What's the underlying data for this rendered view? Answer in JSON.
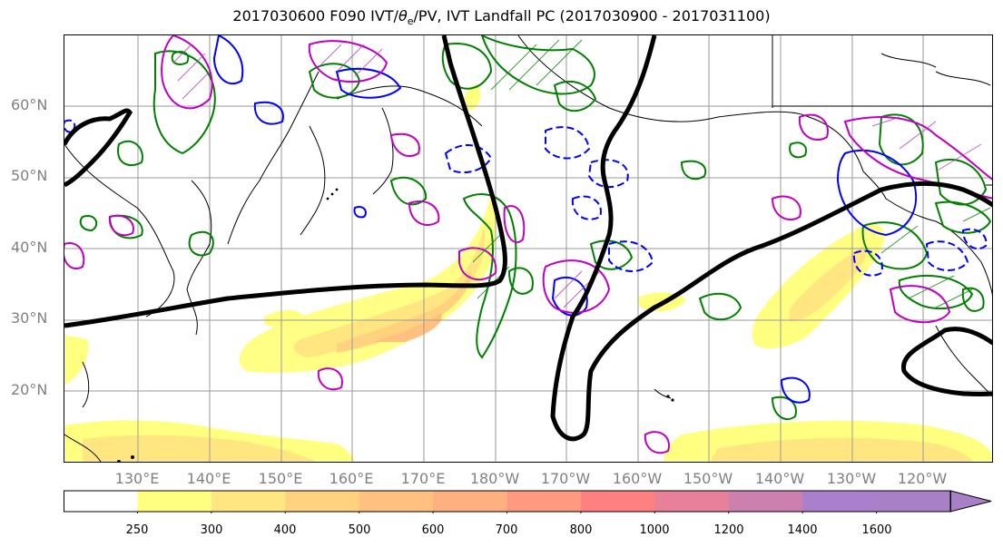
{
  "title_prefix": "2017030600 F090 IVT/",
  "title_theta": "θ",
  "title_sub": "e",
  "title_suffix": "/PV, IVT Landfall PC (2017030900 - 2017031100)",
  "lat_labels": [
    "60°N",
    "50°N",
    "40°N",
    "30°N",
    "20°N"
  ],
  "lon_labels": [
    "130°E",
    "140°E",
    "150°E",
    "160°E",
    "170°E",
    "180°W",
    "170°W",
    "160°W",
    "150°W",
    "140°W",
    "130°W",
    "120°W"
  ],
  "colorbar": {
    "ticks": [
      "250",
      "300",
      "400",
      "500",
      "600",
      "700",
      "800",
      "1000",
      "1200",
      "1400",
      "1600"
    ],
    "colors": [
      "#ffffff",
      "#ffff80",
      "#ffe680",
      "#ffd280",
      "#ffc080",
      "#ffb080",
      "#ff9a80",
      "#ff8080",
      "#e8809a",
      "#cc80b0",
      "#aa80cc"
    ],
    "extend": "max"
  },
  "legend_colors": {
    "ivt_fill": "#ffe680",
    "pv_contour": "#008000",
    "theta_warm": "#c000c0",
    "theta_cool": "#0000ff",
    "pc_contour": "#000000"
  }
}
